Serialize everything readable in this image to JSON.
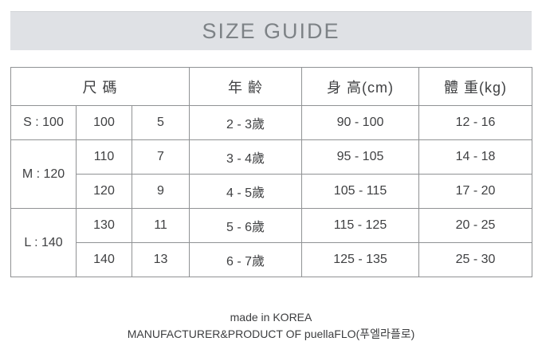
{
  "title": "SIZE GUIDE",
  "colors": {
    "title_bar_bg": "#dfe1e5",
    "title_text": "#7d8286",
    "table_border": "#909294",
    "size_code_red": "#a04a4e",
    "body_text": "#3f4042"
  },
  "table": {
    "headers": {
      "size": "尺 碼",
      "age": "年 齡",
      "height": "身 高(cm)",
      "weight": "體 重(kg)"
    },
    "groups": [
      {
        "label": "S : 100",
        "rows": [
          {
            "size": "100",
            "num": "5",
            "age": "2 - 3歲",
            "height": "90 - 100",
            "weight": "12 - 16"
          }
        ]
      },
      {
        "label": "M : 120",
        "rows": [
          {
            "size": "110",
            "num": "7",
            "age": "3 - 4歲",
            "height": "95 - 105",
            "weight": "14 - 18"
          },
          {
            "size": "120",
            "num": "9",
            "age": "4 - 5歲",
            "height": "105 - 115",
            "weight": "17 - 20"
          }
        ]
      },
      {
        "label": "L : 140",
        "rows": [
          {
            "size": "130",
            "num": "11",
            "age": "5 - 6歲",
            "height": "115 - 125",
            "weight": "20 - 25"
          },
          {
            "size": "140",
            "num": "13",
            "age": "6 - 7歲",
            "height": "125 - 135",
            "weight": "25 - 30"
          }
        ]
      }
    ]
  },
  "footer": {
    "line1": "made in KOREA",
    "line2": "MANUFACTURER&PRODUCT OF puellaFLO(푸엘라플로)"
  }
}
